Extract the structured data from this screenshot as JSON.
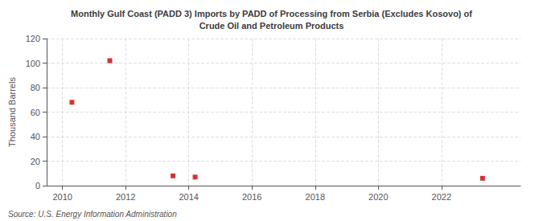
{
  "chart_data": {
    "type": "scatter",
    "title": "Monthly Gulf Coast (PADD 3) Imports by PADD of Processing from Serbia (Excludes Kosovo) of\nCrude Oil and Petroleum Products",
    "y_label": "Thousand Barrels",
    "source": "Source: U.S. Energy Information Administration",
    "x": [
      2010.3,
      2011.5,
      2013.5,
      2014.2,
      2023.3
    ],
    "values": [
      68,
      102,
      8,
      7,
      6
    ],
    "color": "#cc0000",
    "marker": "square",
    "xlim": [
      2009.5,
      2024.5
    ],
    "xticks": [
      2010,
      2012,
      2014,
      2016,
      2018,
      2020,
      2022
    ],
    "ylim": [
      0,
      120
    ],
    "yticks": [
      0,
      20,
      40,
      60,
      80,
      100,
      120
    ],
    "grid": true
  }
}
